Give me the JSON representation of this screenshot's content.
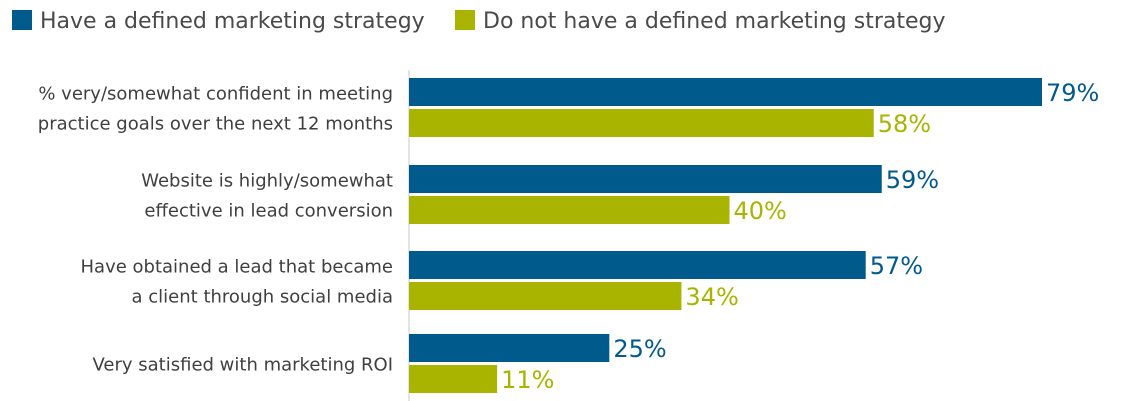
{
  "chart_data": {
    "type": "bar",
    "orientation": "horizontal",
    "categories": [
      [
        "% very/somewhat confident in meeting",
        "practice goals over the next 12 months"
      ],
      [
        "Website is highly/somewhat",
        "effective in lead conversion"
      ],
      [
        "Have obtained a lead that became",
        "a client through social media"
      ],
      [
        "Very satisfied with marketing ROI"
      ]
    ],
    "series": [
      {
        "name": "Have a defined marketing strategy",
        "color": "#005a8c",
        "values": [
          79,
          59,
          57,
          25
        ],
        "labels": [
          "79%",
          "59%",
          "57%",
          "25%"
        ]
      },
      {
        "name": "Do not have a defined marketing strategy",
        "color": "#a8b400",
        "values": [
          58,
          40,
          34,
          11
        ],
        "labels": [
          "58%",
          "40%",
          "34%",
          "11%"
        ]
      }
    ],
    "xlim": [
      0,
      79
    ],
    "legend_position": "top-left",
    "grid": false,
    "axis_line_color": "#c8c8c8"
  }
}
